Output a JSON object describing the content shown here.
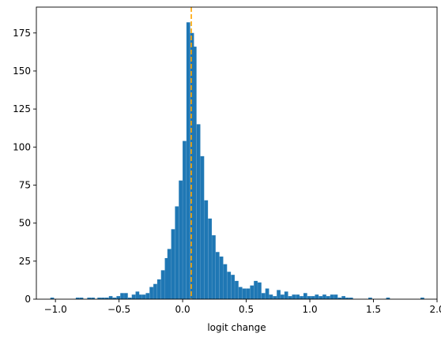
{
  "chart_data": {
    "type": "bar",
    "title": "",
    "xlabel": "logit change",
    "ylabel": "",
    "xlim": [
      -1.15,
      2.0
    ],
    "ylim": [
      0,
      192
    ],
    "grid": false,
    "bar_color": "#1f77b4",
    "xticks": [
      -1.0,
      -0.5,
      0.0,
      0.5,
      1.0,
      1.5,
      2.0
    ],
    "xtick_labels": [
      "−1.0",
      "−0.5",
      "0.0",
      "0.5",
      "1.0",
      "1.5",
      "2.0"
    ],
    "yticks": [
      0,
      25,
      50,
      75,
      100,
      125,
      150,
      175
    ],
    "ytick_labels": [
      "0",
      "25",
      "50",
      "75",
      "100",
      "125",
      "150",
      "175"
    ],
    "bin_width": 0.0291,
    "bins": [
      [
        -1.04,
        1
      ],
      [
        -0.84,
        1
      ],
      [
        -0.81,
        1
      ],
      [
        -0.75,
        1
      ],
      [
        -0.72,
        1
      ],
      [
        -0.69,
        0
      ],
      [
        -0.67,
        1
      ],
      [
        -0.64,
        1
      ],
      [
        -0.61,
        1
      ],
      [
        -0.58,
        2
      ],
      [
        -0.55,
        1
      ],
      [
        -0.52,
        2
      ],
      [
        -0.49,
        4
      ],
      [
        -0.46,
        4
      ],
      [
        -0.43,
        1
      ],
      [
        -0.4,
        3
      ],
      [
        -0.37,
        5
      ],
      [
        -0.35,
        3
      ],
      [
        -0.32,
        3
      ],
      [
        -0.29,
        4
      ],
      [
        -0.26,
        8
      ],
      [
        -0.23,
        10
      ],
      [
        -0.2,
        13
      ],
      [
        -0.17,
        19
      ],
      [
        -0.14,
        27
      ],
      [
        -0.12,
        33
      ],
      [
        -0.09,
        46
      ],
      [
        -0.06,
        61
      ],
      [
        -0.03,
        78
      ],
      [
        0.0,
        104
      ],
      [
        0.03,
        182
      ],
      [
        0.06,
        175
      ],
      [
        0.08,
        166
      ],
      [
        0.11,
        115
      ],
      [
        0.14,
        94
      ],
      [
        0.17,
        65
      ],
      [
        0.2,
        53
      ],
      [
        0.23,
        42
      ],
      [
        0.26,
        31
      ],
      [
        0.29,
        28
      ],
      [
        0.32,
        23
      ],
      [
        0.35,
        18
      ],
      [
        0.38,
        16
      ],
      [
        0.41,
        12
      ],
      [
        0.44,
        8
      ],
      [
        0.47,
        7
      ],
      [
        0.5,
        7
      ],
      [
        0.53,
        9
      ],
      [
        0.56,
        12
      ],
      [
        0.59,
        11
      ],
      [
        0.62,
        4
      ],
      [
        0.65,
        7
      ],
      [
        0.68,
        3
      ],
      [
        0.71,
        2
      ],
      [
        0.74,
        6
      ],
      [
        0.77,
        3
      ],
      [
        0.8,
        5
      ],
      [
        0.83,
        2
      ],
      [
        0.86,
        3
      ],
      [
        0.89,
        3
      ],
      [
        0.92,
        2
      ],
      [
        0.95,
        4
      ],
      [
        0.98,
        2
      ],
      [
        1.01,
        2
      ],
      [
        1.04,
        3
      ],
      [
        1.07,
        2
      ],
      [
        1.1,
        3
      ],
      [
        1.13,
        2
      ],
      [
        1.16,
        3
      ],
      [
        1.19,
        3
      ],
      [
        1.22,
        1
      ],
      [
        1.25,
        2
      ],
      [
        1.28,
        1
      ],
      [
        1.31,
        1
      ],
      [
        1.46,
        1
      ],
      [
        1.6,
        1
      ],
      [
        1.87,
        1
      ]
    ],
    "reference_line": {
      "x": 0.068,
      "color": "#ffa500",
      "style": "dashed"
    }
  }
}
